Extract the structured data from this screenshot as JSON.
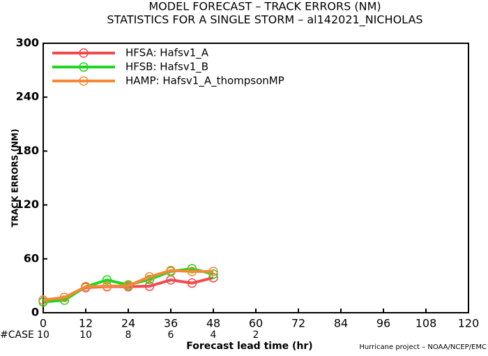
{
  "chart_data": {
    "type": "line",
    "title": "MODEL FORECAST – TRACK ERRORS (NM)",
    "subtitle": "STATISTICS FOR A SINGLE STORM – al142021_NICHOLAS",
    "x_label": "Forecast lead time (hr)",
    "y_label": "TRACK ERRORS (NM)",
    "case_label": "#CASE",
    "cases": [
      10,
      10,
      8,
      6,
      4,
      2
    ],
    "footer": "Hurricane project – NOAA/NCEP/EMC",
    "x": [
      0,
      6,
      12,
      18,
      24,
      30,
      36,
      42,
      48
    ],
    "series": [
      {
        "name": "HFSA:  Hafsv1_A",
        "color": "#f04a4f",
        "values": [
          14,
          17,
          28,
          29,
          29,
          29.5,
          36.5,
          33,
          39
        ]
      },
      {
        "name": "HFSB:  Hafsv1_B",
        "color": "#1fd61f",
        "values": [
          12,
          14,
          29,
          36.5,
          31,
          37,
          46,
          49,
          43
        ]
      },
      {
        "name": "HAMP:  Hafsv1_A_thompsonMP",
        "color": "#f5893a",
        "values": [
          14,
          17,
          29,
          29.5,
          30,
          40,
          47,
          46,
          46
        ]
      }
    ],
    "xlim": [
      0,
      120
    ],
    "xticks": [
      0,
      12,
      24,
      36,
      48,
      60,
      72,
      84,
      96,
      108,
      120
    ],
    "ylim": [
      0,
      300
    ],
    "yticks": [
      0,
      60,
      120,
      180,
      240,
      300
    ],
    "case_color": "#1ec8c8"
  }
}
